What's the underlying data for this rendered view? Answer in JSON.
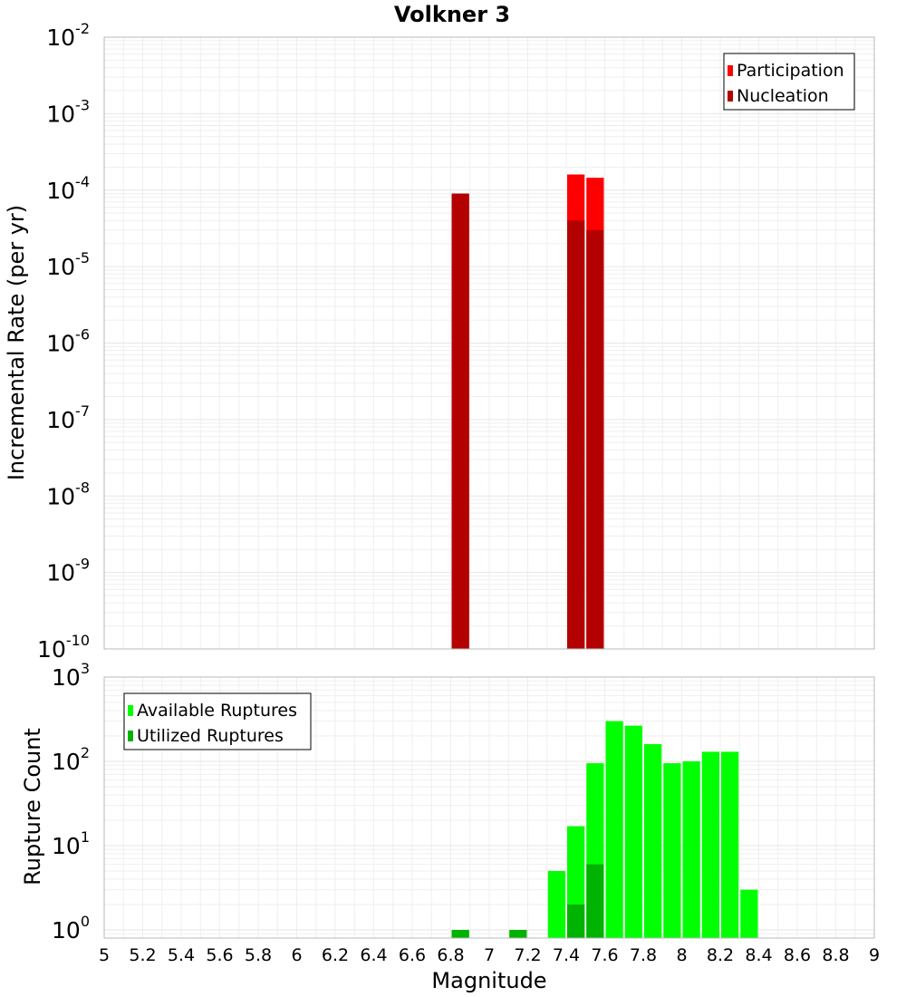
{
  "chart_data": [
    {
      "type": "bar",
      "title": "Volkner 3",
      "ylabel": "Incremental Rate (per yr)",
      "xlabel": "",
      "yscale": "log",
      "ylim": [
        1e-10,
        0.01
      ],
      "xlim": [
        5,
        9
      ],
      "ytick_labels": [
        {
          "base": "10",
          "exp": "-10"
        },
        {
          "base": "10",
          "exp": "-9"
        },
        {
          "base": "10",
          "exp": "-8"
        },
        {
          "base": "10",
          "exp": "-7"
        },
        {
          "base": "10",
          "exp": "-6"
        },
        {
          "base": "10",
          "exp": "-5"
        },
        {
          "base": "10",
          "exp": "-4"
        },
        {
          "base": "10",
          "exp": "-3"
        },
        {
          "base": "10",
          "exp": "-2"
        }
      ],
      "grid": true,
      "legend": "top-right",
      "bar_width": 0.1,
      "series": [
        {
          "name": "Participation",
          "color": "#ff0000",
          "x": [
            6.85,
            7.45,
            7.55
          ],
          "values": [
            9e-05,
            0.00016,
            0.000145
          ]
        },
        {
          "name": "Nucleation",
          "color": "#b30000",
          "x": [
            6.85,
            7.45,
            7.55
          ],
          "values": [
            9e-05,
            4e-05,
            3e-05
          ]
        }
      ]
    },
    {
      "type": "bar",
      "title": "",
      "ylabel": "Rupture Count",
      "xlabel": "Magnitude",
      "yscale": "log",
      "ylim": [
        0.8,
        1000
      ],
      "xlim": [
        5,
        9
      ],
      "ytick_labels": [
        {
          "base": "10",
          "exp": "0",
          "value": 1
        },
        {
          "base": "10",
          "exp": "1",
          "value": 10
        },
        {
          "base": "10",
          "exp": "2",
          "value": 100
        },
        {
          "base": "10",
          "exp": "3",
          "value": 1000
        }
      ],
      "xtick_labels": [
        "5",
        "5.2",
        "5.4",
        "5.6",
        "5.8",
        "6",
        "6.2",
        "6.4",
        "6.6",
        "6.8",
        "7",
        "7.2",
        "7.4",
        "7.6",
        "7.8",
        "8",
        "8.2",
        "8.4",
        "8.6",
        "8.8",
        "9"
      ],
      "grid": true,
      "legend": "top-left",
      "bar_width": 0.1,
      "series": [
        {
          "name": "Available Ruptures",
          "color": "#00ff00",
          "x": [
            6.85,
            7.15,
            7.35,
            7.45,
            7.55,
            7.65,
            7.75,
            7.85,
            7.95,
            8.05,
            8.15,
            8.25,
            8.35
          ],
          "values": [
            1,
            1,
            5,
            17,
            95,
            300,
            265,
            160,
            95,
            100,
            130,
            130,
            3
          ]
        },
        {
          "name": "Utilized Ruptures",
          "color": "#00b300",
          "x": [
            6.85,
            7.15,
            7.45,
            7.55
          ],
          "values": [
            1,
            1,
            2,
            6
          ]
        }
      ]
    }
  ]
}
